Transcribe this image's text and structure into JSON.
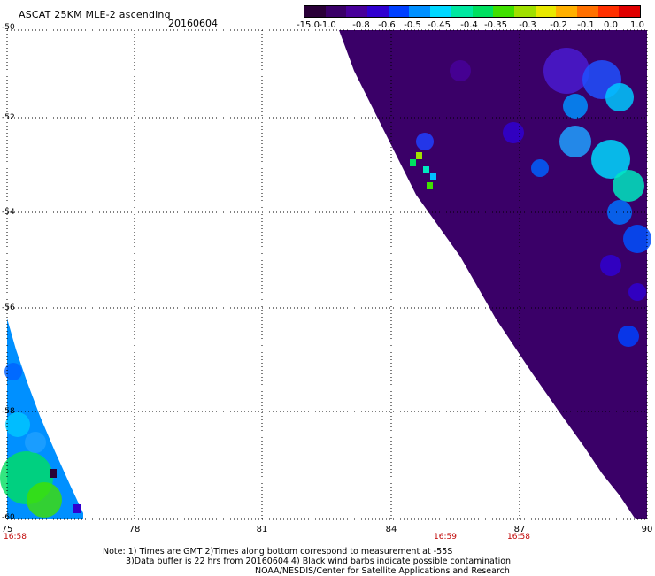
{
  "header": {
    "title": "ASCAT 25KM MLE-2 ascending",
    "date": "20160604"
  },
  "colorbar": {
    "ticks": [
      "-15.0",
      "-1.0",
      "-0.8",
      "-0.6",
      "-0.5",
      "-0.45",
      "-0.4",
      "-0.35",
      "-0.3",
      "-0.2",
      "-0.1",
      "0.0",
      "1.0"
    ],
    "colors": [
      "#2a0038",
      "#3a0068",
      "#48009a",
      "#3000d0",
      "#0040ff",
      "#0090ff",
      "#00d8ff",
      "#00e8a0",
      "#00e060",
      "#40e000",
      "#a0e000",
      "#e8e800",
      "#ffb000",
      "#ff7000",
      "#ff3000",
      "#e00000"
    ]
  },
  "axes": {
    "lat_labels": [
      "-50",
      "-52",
      "-54",
      "-56",
      "-58",
      "-60"
    ],
    "lon_labels": [
      "75",
      "78",
      "81",
      "84",
      "87",
      "90"
    ]
  },
  "times": [
    "16:58",
    "16:59",
    "16:58"
  ],
  "notes": {
    "line1": "Note: 1) Times are GMT 2)Times along bottom correspond to measurement at -55S",
    "line2": "3)Data buffer is 22 hrs from 20160604 4) Black wind barbs indicate possible contamination",
    "line3": "NOAA/NESDIS/Center for Satellite Applications and Research"
  }
}
